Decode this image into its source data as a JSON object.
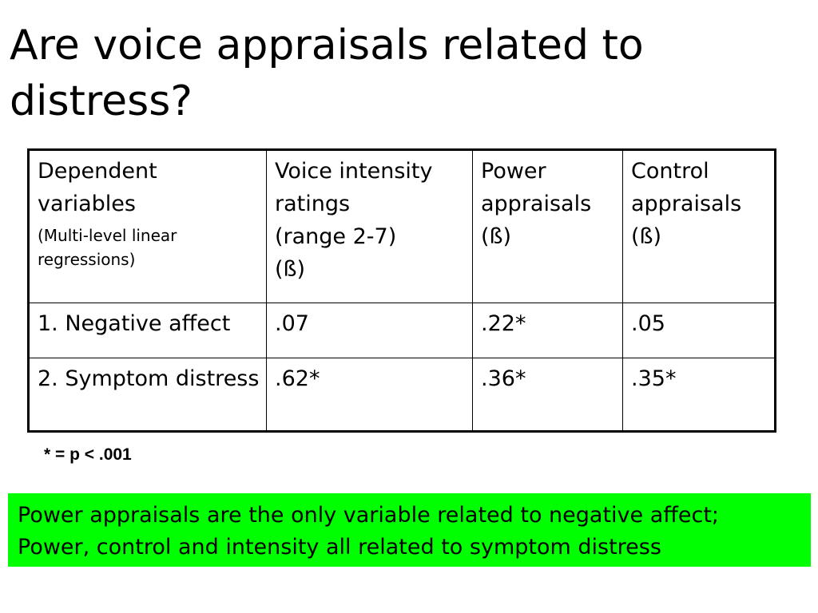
{
  "slide": {
    "title": "Are voice appraisals related to distress?"
  },
  "table": {
    "headers": [
      {
        "lines": [
          "Dependent variables"
        ],
        "note": "(Multi-level linear regressions)"
      },
      {
        "lines": [
          "Voice intensity ratings",
          "(range 2-7)",
          "(ß)"
        ]
      },
      {
        "lines": [
          "Power appraisals (ß)"
        ]
      },
      {
        "lines": [
          "Control appraisals (ß)"
        ]
      }
    ],
    "rows": [
      {
        "label": "1. Negative affect",
        "values": [
          ".07",
          ".22*",
          ".05"
        ]
      },
      {
        "label": "2. Symptom distress",
        "values": [
          ".62*",
          ".36*",
          ".35*"
        ]
      }
    ]
  },
  "footnote": "* = p < .001",
  "summary": {
    "line1": "Power appraisals are the only variable related to negative affect;",
    "line2": "Power, control and intensity all related to symptom distress",
    "background": "#00ff00"
  }
}
